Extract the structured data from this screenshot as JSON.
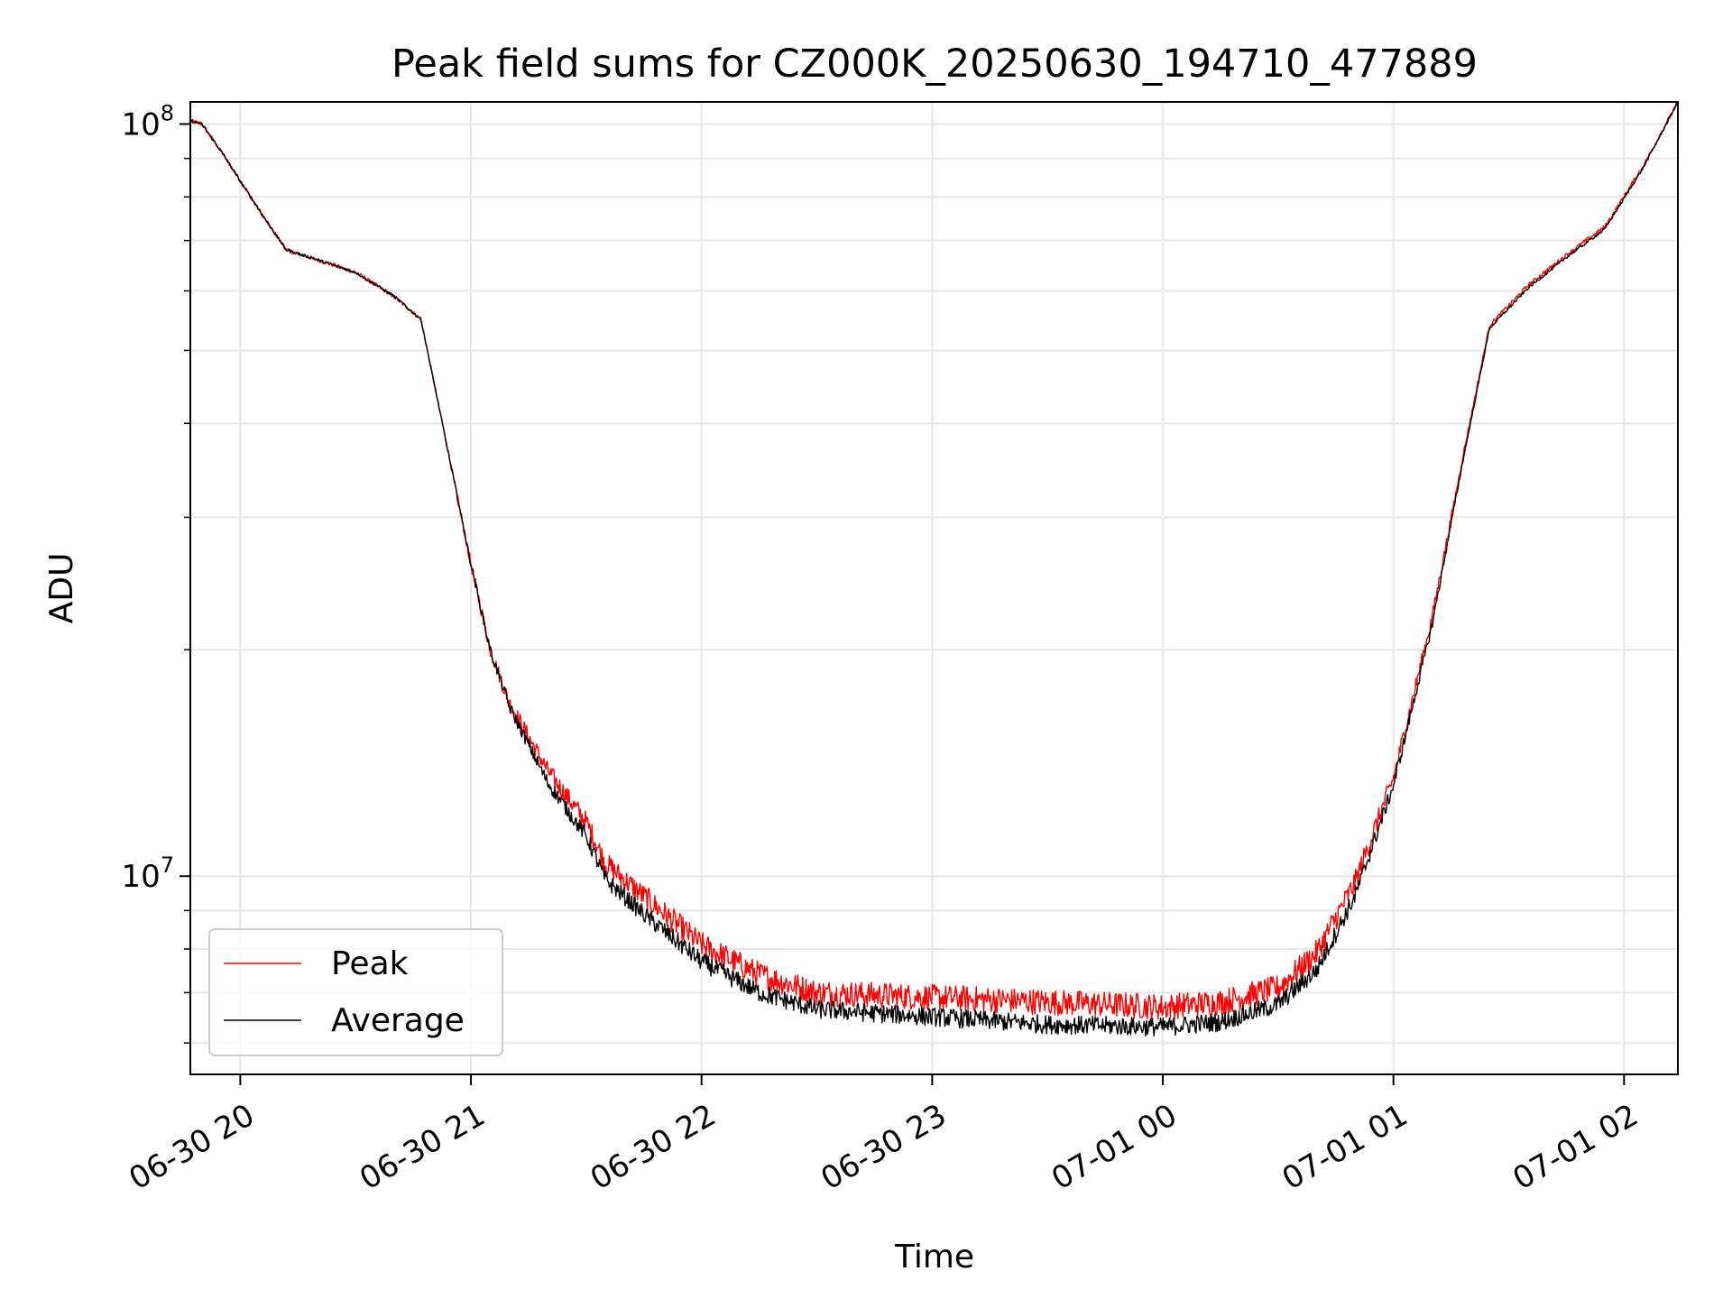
{
  "chart_data": {
    "type": "line",
    "title": "Peak field sums for CZ000K_20250630_194710_477889",
    "xlabel": "Time",
    "ylabel": "ADU",
    "yscale": "log",
    "grid": true,
    "legend_placement": "lower-left",
    "xlim": [
      "2025-06-30 19:47",
      "2025-07-01 02:14"
    ],
    "ylim": [
      5450000,
      107000000
    ],
    "x_ticks": [
      {
        "t": "2025-06-30 20:00",
        "label": "06-30 20"
      },
      {
        "t": "2025-06-30 21:00",
        "label": "06-30 21"
      },
      {
        "t": "2025-06-30 22:00",
        "label": "06-30 22"
      },
      {
        "t": "2025-06-30 23:00",
        "label": "06-30 23"
      },
      {
        "t": "2025-07-01 00:00",
        "label": "07-01 00"
      },
      {
        "t": "2025-07-01 01:00",
        "label": "07-01 01"
      },
      {
        "t": "2025-07-01 02:00",
        "label": "07-01 02"
      }
    ],
    "y_major_ticks": [
      {
        "value": 10000000,
        "base": "10",
        "exp": "7"
      },
      {
        "value": 100000000,
        "base": "10",
        "exp": "8"
      }
    ],
    "y_minor_ticks": [
      6000000,
      7000000,
      8000000,
      9000000,
      20000000,
      30000000,
      40000000,
      50000000,
      60000000,
      70000000,
      80000000,
      90000000
    ],
    "series": [
      {
        "name": "Peak",
        "color": "#ff0000",
        "noise": 0.035,
        "points": [
          [
            "2025-06-30 19:47",
            101000000
          ],
          [
            "2025-06-30 19:50",
            100000000
          ],
          [
            "2025-06-30 19:55",
            92000000
          ],
          [
            "2025-06-30 20:00",
            84000000
          ],
          [
            "2025-06-30 20:07",
            74000000
          ],
          [
            "2025-06-30 20:12",
            68000000
          ],
          [
            "2025-06-30 20:20",
            66000000
          ],
          [
            "2025-06-30 20:30",
            63500000
          ],
          [
            "2025-06-30 20:40",
            59000000
          ],
          [
            "2025-06-30 20:47",
            55000000
          ],
          [
            "2025-06-30 20:53",
            39000000
          ],
          [
            "2025-06-30 21:00",
            26000000
          ],
          [
            "2025-06-30 21:05",
            20000000
          ],
          [
            "2025-06-30 21:10",
            17000000
          ],
          [
            "2025-06-30 21:20",
            13800000
          ],
          [
            "2025-06-30 21:30",
            11800000
          ],
          [
            "2025-06-30 21:35",
            10400000
          ],
          [
            "2025-06-30 21:45",
            9400000
          ],
          [
            "2025-06-30 22:00",
            8100000
          ],
          [
            "2025-06-30 22:15",
            7400000
          ],
          [
            "2025-06-30 22:30",
            7000000
          ],
          [
            "2025-06-30 23:00",
            6900000
          ],
          [
            "2025-06-30 23:30",
            6800000
          ],
          [
            "2025-07-01 00:00",
            6700000
          ],
          [
            "2025-07-01 00:15",
            6800000
          ],
          [
            "2025-07-01 00:30",
            7100000
          ],
          [
            "2025-07-01 00:40",
            7900000
          ],
          [
            "2025-07-01 00:50",
            9800000
          ],
          [
            "2025-07-01 01:00",
            13500000
          ],
          [
            "2025-07-01 01:10",
            22000000
          ],
          [
            "2025-07-01 01:18",
            36000000
          ],
          [
            "2025-07-01 01:25",
            54000000
          ],
          [
            "2025-07-01 01:35",
            61000000
          ],
          [
            "2025-07-01 01:45",
            67000000
          ],
          [
            "2025-07-01 01:55",
            73000000
          ],
          [
            "2025-07-01 02:05",
            88000000
          ],
          [
            "2025-07-01 02:14",
            107000000
          ]
        ]
      },
      {
        "name": "Average",
        "color": "#000000",
        "noise": 0.025,
        "points": [
          [
            "2025-06-30 19:47",
            101000000
          ],
          [
            "2025-06-30 19:50",
            100000000
          ],
          [
            "2025-06-30 19:55",
            92000000
          ],
          [
            "2025-06-30 20:00",
            84000000
          ],
          [
            "2025-06-30 20:07",
            74000000
          ],
          [
            "2025-06-30 20:12",
            68000000
          ],
          [
            "2025-06-30 20:20",
            66000000
          ],
          [
            "2025-06-30 20:30",
            63500000
          ],
          [
            "2025-06-30 20:40",
            59000000
          ],
          [
            "2025-06-30 20:47",
            55000000
          ],
          [
            "2025-06-30 20:53",
            39000000
          ],
          [
            "2025-06-30 21:00",
            26000000
          ],
          [
            "2025-06-30 21:05",
            20000000
          ],
          [
            "2025-06-30 21:10",
            16800000
          ],
          [
            "2025-06-30 21:20",
            13300000
          ],
          [
            "2025-06-30 21:30",
            11300000
          ],
          [
            "2025-06-30 21:35",
            9900000
          ],
          [
            "2025-06-30 21:45",
            8900000
          ],
          [
            "2025-06-30 22:00",
            7700000
          ],
          [
            "2025-06-30 22:15",
            7000000
          ],
          [
            "2025-06-30 22:30",
            6650000
          ],
          [
            "2025-06-30 23:00",
            6500000
          ],
          [
            "2025-06-30 23:30",
            6350000
          ],
          [
            "2025-07-01 00:00",
            6300000
          ],
          [
            "2025-07-01 00:15",
            6400000
          ],
          [
            "2025-07-01 00:30",
            6750000
          ],
          [
            "2025-07-01 00:40",
            7500000
          ],
          [
            "2025-07-01 00:50",
            9400000
          ],
          [
            "2025-07-01 01:00",
            13200000
          ],
          [
            "2025-07-01 01:10",
            21500000
          ],
          [
            "2025-07-01 01:18",
            35500000
          ],
          [
            "2025-07-01 01:25",
            53500000
          ],
          [
            "2025-07-01 01:35",
            60500000
          ],
          [
            "2025-07-01 01:45",
            66500000
          ],
          [
            "2025-07-01 01:55",
            72500000
          ],
          [
            "2025-07-01 02:05",
            87500000
          ],
          [
            "2025-07-01 02:14",
            107000000
          ]
        ]
      }
    ]
  }
}
